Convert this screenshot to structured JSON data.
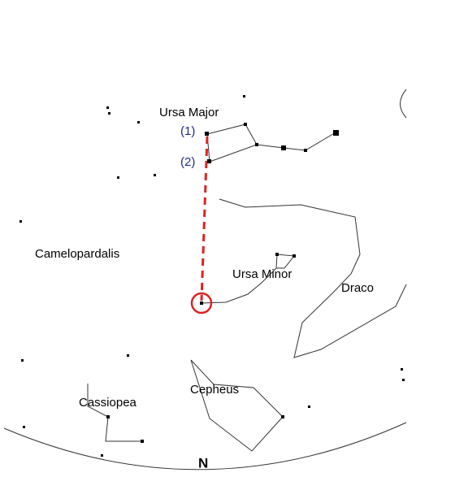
{
  "labels": {
    "ursa_major": "Ursa Major",
    "pointer_1": "(1)",
    "pointer_2": "(2)",
    "camelopardalis": "Camelopardalis",
    "ursa_minor": "Ursa Minor",
    "draco": "Draco",
    "cepheus": "Cepheus",
    "cassiopea": "Cassiopea",
    "north": "N"
  }
}
